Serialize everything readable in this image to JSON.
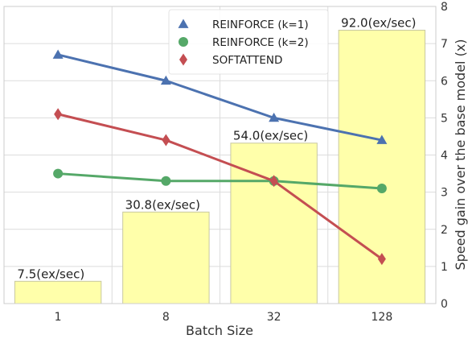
{
  "chart_data": {
    "type": "bar",
    "categories": [
      "1",
      "8",
      "32",
      "128"
    ],
    "xlabel": "Batch Size",
    "ylabel_right": "Speed gain over the base model (x)",
    "ylim_right": [
      0,
      8
    ],
    "yticks_right": [
      "0",
      "1",
      "2",
      "3",
      "4",
      "5",
      "6",
      "7",
      "8"
    ],
    "grid": true,
    "legend_position": "top-right",
    "bars": {
      "values": [
        7.5,
        30.8,
        54.0,
        92.0
      ],
      "labels": [
        "7.5(ex/sec)",
        "30.8(ex/sec)",
        "54.0(ex/sec)",
        "92.0(ex/sec)"
      ],
      "color": "#ffffaa",
      "edge_color": "#c8c8a0"
    },
    "series": [
      {
        "name": "REINFORCE (k=1)",
        "values": [
          6.7,
          6.0,
          5.0,
          4.4
        ],
        "color": "#4c72b0",
        "marker": "triangle"
      },
      {
        "name": "REINFORCE (k=2)",
        "values": [
          3.5,
          3.3,
          3.3,
          3.1
        ],
        "color": "#55a868",
        "marker": "circle"
      },
      {
        "name": "SOFTATTEND",
        "values": [
          5.1,
          4.4,
          3.3,
          1.2
        ],
        "color": "#c44e52",
        "marker": "diamond"
      }
    ]
  }
}
